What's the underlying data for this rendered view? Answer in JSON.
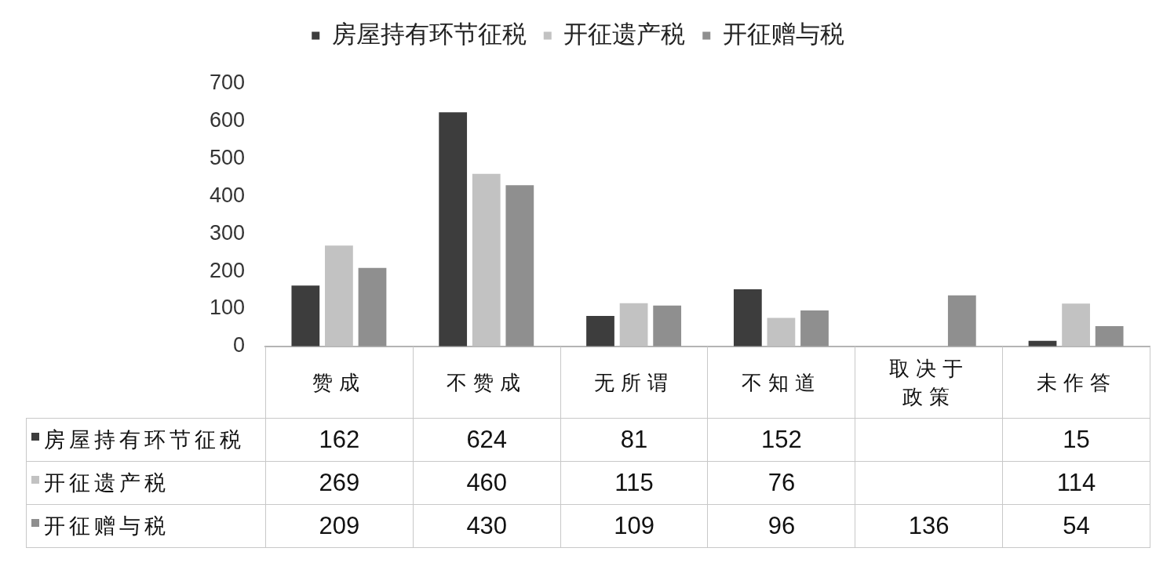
{
  "chart_data": {
    "type": "bar",
    "categories": [
      "赞成",
      "不赞成",
      "无所谓",
      "不知道",
      "取决于政策",
      "未作答"
    ],
    "series": [
      {
        "name": "房屋持有环节征税",
        "color": "#3d3d3d",
        "values": [
          162,
          624,
          81,
          152,
          null,
          15
        ]
      },
      {
        "name": "开征遗产税",
        "color": "#c2c2c2",
        "values": [
          269,
          460,
          115,
          76,
          null,
          114
        ]
      },
      {
        "name": "开征赠与税",
        "color": "#8f8f8f",
        "values": [
          209,
          430,
          109,
          96,
          136,
          54
        ]
      }
    ],
    "ylim": [
      0,
      700
    ],
    "yticks": [
      0,
      100,
      200,
      300,
      400,
      500,
      600,
      700
    ],
    "legend": "top",
    "data_labels": true,
    "grid": false
  }
}
